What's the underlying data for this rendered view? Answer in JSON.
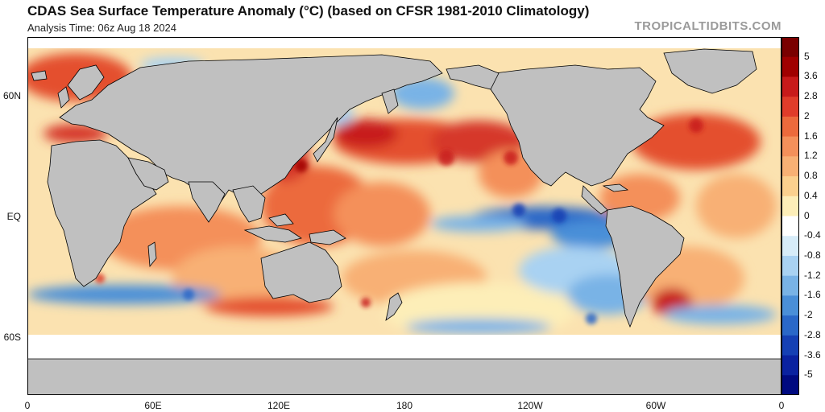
{
  "header": {
    "title": "CDAS Sea Surface Temperature Anomaly (°C) (based on CFSR 1981-2010 Climatology)",
    "subtitle": "Analysis Time: 06z Aug 18 2024",
    "credit": "TROPICALTIDBITS.COM"
  },
  "map": {
    "lat_labels": [
      "60N",
      "EQ",
      "60S"
    ],
    "lon_labels": [
      "0",
      "60E",
      "120E",
      "180",
      "120W",
      "60W",
      "0"
    ],
    "land_color": "#c0c0c0",
    "ice_color": "#ffffff",
    "border_color": "#000000"
  },
  "colorbar": {
    "labels": [
      "5",
      "3.6",
      "2.8",
      "2",
      "1.6",
      "1.2",
      "0.8",
      "0.4",
      "0",
      "-0.4",
      "-0.8",
      "-1.2",
      "-1.6",
      "-2",
      "-2.8",
      "-3.6",
      "-5"
    ],
    "colors": [
      "#7a0000",
      "#a00000",
      "#c81a1a",
      "#e03c2a",
      "#ec6a3c",
      "#f4905a",
      "#f8b074",
      "#fbd08e",
      "#fdeeb8",
      "#ffffff",
      "#d7ecf8",
      "#a9d2f2",
      "#79b3e6",
      "#4a8fd8",
      "#2a68c8",
      "#1540b4",
      "#0a22a0",
      "#000a80"
    ]
  }
}
